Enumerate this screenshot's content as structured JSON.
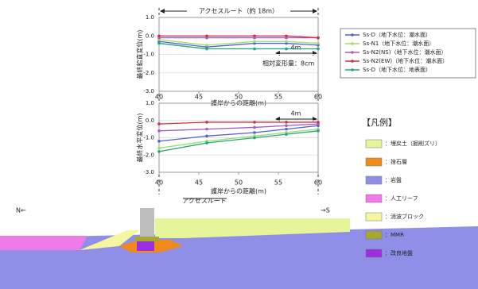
{
  "chart_data": [
    {
      "type": "line",
      "ylabel": "最終鉛直変位(m)",
      "xlabel": "護岸からの距離(m)",
      "x": [
        40,
        46,
        52,
        56,
        60
      ],
      "xlim": [
        40,
        60
      ],
      "xticks": [
        40,
        45,
        50,
        55,
        60
      ],
      "ylim": [
        -3,
        1
      ],
      "yticks": [
        {
          "value": 1,
          "label": "1.0"
        },
        {
          "value": 0,
          "label": "0.0"
        },
        {
          "value": -1,
          "label": "-1.0"
        },
        {
          "value": -2,
          "label": "-2.0"
        },
        {
          "value": -3,
          "label": "-3.0"
        }
      ],
      "series": [
        {
          "name": "Ss-D（地下水位：潮水面）",
          "color": "#4f63d2",
          "values": [
            -0.3,
            -0.6,
            -0.4,
            -0.4,
            -0.5
          ]
        },
        {
          "name": "Ss-N1（地下水位：潮水面）",
          "color": "#9fdc6e",
          "values": [
            -0.2,
            -0.5,
            -0.3,
            -0.3,
            -0.4
          ]
        },
        {
          "name": "Ss-N2(NS)（地下水位：潮水面）",
          "color": "#a85cc0",
          "values": [
            -0.1,
            -0.1,
            -0.1,
            -0.1,
            -0.1
          ]
        },
        {
          "name": "Ss-N2(EW)（地下水位：潮水面）",
          "color": "#d0303e",
          "values": [
            0,
            0,
            0,
            0,
            -0.1
          ]
        },
        {
          "name": "Ss-D（地下水位：地表面）",
          "color": "#22a57a",
          "values": [
            -0.4,
            -0.7,
            -0.7,
            -0.7,
            -0.7
          ]
        }
      ]
    },
    {
      "type": "line",
      "ylabel": "最終水平変位(m)",
      "xlabel": "護岸からの距離(m)",
      "x": [
        40,
        46,
        52,
        56,
        60
      ],
      "xlim": [
        40,
        60
      ],
      "xticks": [
        40,
        45,
        50,
        55,
        60
      ],
      "ylim": [
        -3,
        1
      ],
      "yticks": [
        {
          "value": 1,
          "label": "1.0"
        },
        {
          "value": 0,
          "label": "0.0"
        },
        {
          "value": -1,
          "label": "-1.0"
        },
        {
          "value": -2,
          "label": "-2.0"
        },
        {
          "value": -3,
          "label": "-3.0"
        }
      ],
      "series": [
        {
          "color": "#4f63d2",
          "values": [
            -1.2,
            -0.9,
            -0.7,
            -0.5,
            -0.3
          ]
        },
        {
          "color": "#9fdc6e",
          "values": [
            -1.6,
            -1.2,
            -0.9,
            -0.7,
            -0.5
          ]
        },
        {
          "color": "#a85cc0",
          "values": [
            -0.6,
            -0.5,
            -0.4,
            -0.3,
            -0.2
          ]
        },
        {
          "color": "#d0303e",
          "values": [
            -0.2,
            -0.1,
            -0.1,
            -0.1,
            -0.1
          ]
        },
        {
          "color": "#22a57a",
          "values": [
            -1.8,
            -1.3,
            -1.0,
            -0.8,
            -0.6
          ]
        }
      ]
    }
  ],
  "annotations": {
    "access_route_width": "アクセスルート（約 18m）",
    "top_span": "4m",
    "relative_deformation": "相対変形量：8cm",
    "bottom_span": "4m",
    "access_route": "アクセスルート",
    "north": "N←",
    "south": "→S"
  },
  "legend": {
    "title": "【凡例】",
    "items": [
      {
        "label": "：埋戻土（掘削ズリ）",
        "color": "#e6f59a"
      },
      {
        "label": "：捨石層",
        "color": "#f08a1c"
      },
      {
        "label": "：岩盤",
        "color": "#8f8fe8"
      },
      {
        "label": "：人工リーフ",
        "color": "#f07ae8"
      },
      {
        "label": "：消波ブロック",
        "color": "#f6f6a0"
      },
      {
        "label": "：MMR",
        "color": "#a8a830"
      },
      {
        "label": "：改良地盤",
        "color": "#9a2ee0"
      }
    ]
  }
}
